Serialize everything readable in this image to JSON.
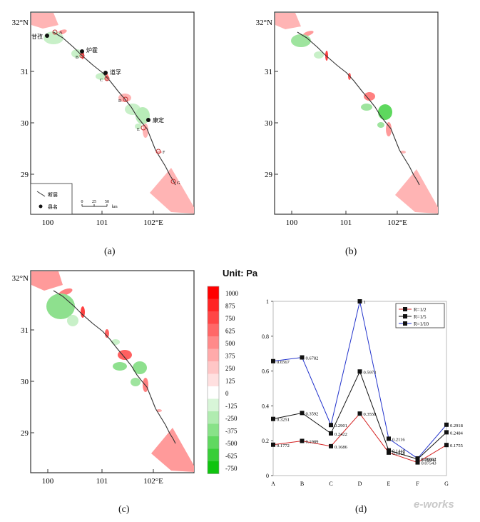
{
  "panels": {
    "a": {
      "caption": "(a)"
    },
    "b": {
      "caption": "(b)"
    },
    "c": {
      "caption": "(c)"
    },
    "d": {
      "caption": "(d)"
    }
  },
  "map_axes": {
    "lat_labels": [
      "32°N",
      "31",
      "30",
      "29"
    ],
    "lon_labels": [
      "100",
      "101",
      "102°E"
    ]
  },
  "map_a": {
    "cities": [
      {
        "name": "甘孜"
      },
      {
        "name": "炉霍"
      },
      {
        "name": "道孚"
      },
      {
        "name": "康定"
      }
    ],
    "point_labels": [
      "A",
      "B",
      "C",
      "D",
      "E",
      "F",
      "G"
    ],
    "legend": {
      "fault": "断层",
      "county": "县名"
    },
    "scale": {
      "ticks": [
        "0",
        "25",
        "50"
      ],
      "unit": "km"
    }
  },
  "colorbar": {
    "unit_label": "Unit: Pa",
    "levels": [
      "1000",
      "875",
      "750",
      "625",
      "500",
      "375",
      "250",
      "125",
      "0",
      "-125",
      "-250",
      "-375",
      "-500",
      "-625",
      "-750"
    ],
    "colors": [
      "#ff0000",
      "#ff2424",
      "#ff4646",
      "#ff6868",
      "#ff8a8a",
      "#ffaaaa",
      "#ffc6c6",
      "#ffe0e0",
      "#ffffff",
      "#d8f5d8",
      "#b0ecb0",
      "#88e288",
      "#60d860",
      "#38ce38",
      "#10c410"
    ]
  },
  "chart_data": {
    "type": "line",
    "categories": [
      "A",
      "B",
      "C",
      "D",
      "E",
      "F",
      "G"
    ],
    "ylim": [
      0,
      1
    ],
    "yticks": [
      "0",
      "0.2",
      "0.4",
      "0.6",
      "0.8",
      "1"
    ],
    "series": [
      {
        "name": "R=1/2",
        "color": "#d42020",
        "values": [
          0.1772,
          0.1989,
          0.1686,
          0.3558,
          0.1318,
          0.07543,
          0.1755
        ],
        "labels": [
          "0.1772",
          "0.1989",
          "0.1686",
          "0.3558",
          "0.1318",
          "0.07543",
          "0.1755"
        ]
      },
      {
        "name": "R=1/5",
        "color": "#111111",
        "values": [
          0.3251,
          0.3592,
          0.2422,
          0.5973,
          0.1448,
          0.09441,
          0.2484
        ],
        "labels": [
          "0.3251",
          "0.3592",
          "0.2422",
          "0.5973",
          "0.1448",
          "0.09441",
          "0.2484"
        ]
      },
      {
        "name": "R=1/10",
        "color": "#2233cc",
        "values": [
          0.6567,
          0.6782,
          0.2901,
          1.0,
          0.2116,
          0.09862,
          0.2918
        ],
        "labels": [
          "0.6567",
          "0.6782",
          "0.2901",
          "1",
          "0.2116",
          "0.09862",
          "0.2918"
        ]
      }
    ]
  },
  "watermark": "e-works"
}
